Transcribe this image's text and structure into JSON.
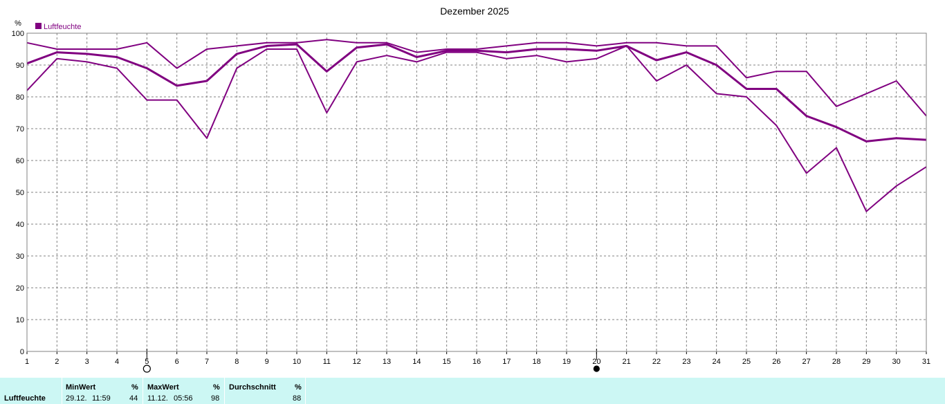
{
  "colors": {
    "series": "#800080",
    "grid": "#808080",
    "stats_bg": "#ccf7f4"
  },
  "chart_data": {
    "type": "line",
    "title": "Dezember 2025",
    "ylabel": "%",
    "ylim": [
      0,
      100
    ],
    "yticks": [
      "0",
      "10",
      "20",
      "30",
      "40",
      "50",
      "60",
      "70",
      "80",
      "90",
      "100"
    ],
    "x": [
      "1",
      "2",
      "3",
      "4",
      "5",
      "6",
      "7",
      "8",
      "9",
      "10",
      "11",
      "12",
      "13",
      "14",
      "15",
      "16",
      "17",
      "18",
      "19",
      "20",
      "21",
      "22",
      "23",
      "24",
      "25",
      "26",
      "27",
      "28",
      "29",
      "30",
      "31"
    ],
    "legend": "Luftfeuchte",
    "legend_position": "top-left",
    "grid": true,
    "series": [
      {
        "role": "max",
        "values": [
          97,
          95,
          95,
          95,
          97,
          89,
          95,
          96,
          97,
          97,
          98,
          97,
          97,
          94,
          95,
          95,
          96,
          97,
          97,
          96,
          97,
          97,
          96,
          96,
          86,
          88,
          88,
          77,
          81,
          85,
          74
        ]
      },
      {
        "role": "avg",
        "values": [
          90.5,
          94,
          93.5,
          92.5,
          89,
          83.5,
          85,
          93.5,
          96,
          96.5,
          88,
          95.5,
          96.5,
          92.5,
          94.5,
          94.5,
          94,
          95,
          95,
          94.5,
          96,
          91.5,
          94,
          90,
          82.5,
          82.5,
          74,
          70.5,
          66,
          67,
          66.5
        ]
      },
      {
        "role": "min",
        "values": [
          82,
          92,
          91,
          89,
          79,
          79,
          67,
          89,
          95,
          95,
          75,
          91,
          93,
          91,
          94,
          94,
          92,
          93,
          91,
          92,
          96,
          85,
          90,
          81,
          80,
          71,
          56,
          64,
          44,
          52,
          58
        ]
      }
    ],
    "moon_markers": [
      {
        "day": 5,
        "phase": "full"
      },
      {
        "day": 20,
        "phase": "new"
      }
    ]
  },
  "stats": {
    "series_label": "Luftfeuchte",
    "min": {
      "header": "MinWert",
      "unit": "%",
      "date": "29.12.",
      "time": "11:59",
      "value": "44"
    },
    "max": {
      "header": "MaxWert",
      "unit": "%",
      "date": "11.12.",
      "time": "05:56",
      "value": "98"
    },
    "avg": {
      "header": "Durchschnitt",
      "unit": "%",
      "value": "88"
    }
  }
}
